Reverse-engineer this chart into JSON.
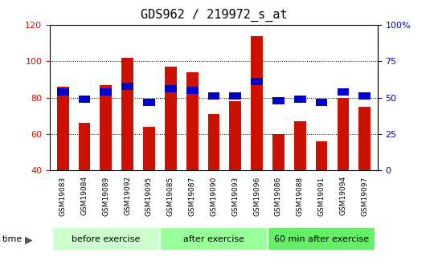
{
  "title": "GDS962 / 219972_s_at",
  "samples": [
    "GSM19083",
    "GSM19084",
    "GSM19089",
    "GSM19092",
    "GSM19095",
    "GSM19085",
    "GSM19087",
    "GSM19090",
    "GSM19093",
    "GSM19096",
    "GSM19086",
    "GSM19088",
    "GSM19091",
    "GSM19094",
    "GSM19097"
  ],
  "counts": [
    86,
    66,
    87,
    102,
    64,
    97,
    94,
    71,
    78,
    114,
    60,
    67,
    56,
    80,
    75
  ],
  "percentile_ranks": [
    54,
    49,
    54,
    58,
    47,
    56,
    55,
    51,
    51,
    61,
    48,
    49,
    47,
    54,
    51
  ],
  "groups": [
    {
      "label": "before exercise",
      "start": 0,
      "end": 5
    },
    {
      "label": "after exercise",
      "start": 5,
      "end": 10
    },
    {
      "label": "60 min after exercise",
      "start": 10,
      "end": 15
    }
  ],
  "group_colors": [
    "#ccffcc",
    "#99ff99",
    "#66ee66"
  ],
  "ylim": [
    40,
    120
  ],
  "y2lim": [
    0,
    100
  ],
  "y_ticks": [
    40,
    60,
    80,
    100,
    120
  ],
  "y2_ticks": [
    0,
    25,
    50,
    75,
    100
  ],
  "y2_labels": [
    "0",
    "25",
    "50",
    "75",
    "100%"
  ],
  "bar_color": "#cc1100",
  "percentile_color": "#0000cc",
  "bar_width": 0.55,
  "tick_label_color_left": "#cc1100",
  "tick_label_color_right": "#0000cc",
  "xlabel_area_color": "#cccccc",
  "group_label_fontsize": 8,
  "title_fontsize": 11,
  "grid_lines": [
    60,
    80,
    100
  ]
}
